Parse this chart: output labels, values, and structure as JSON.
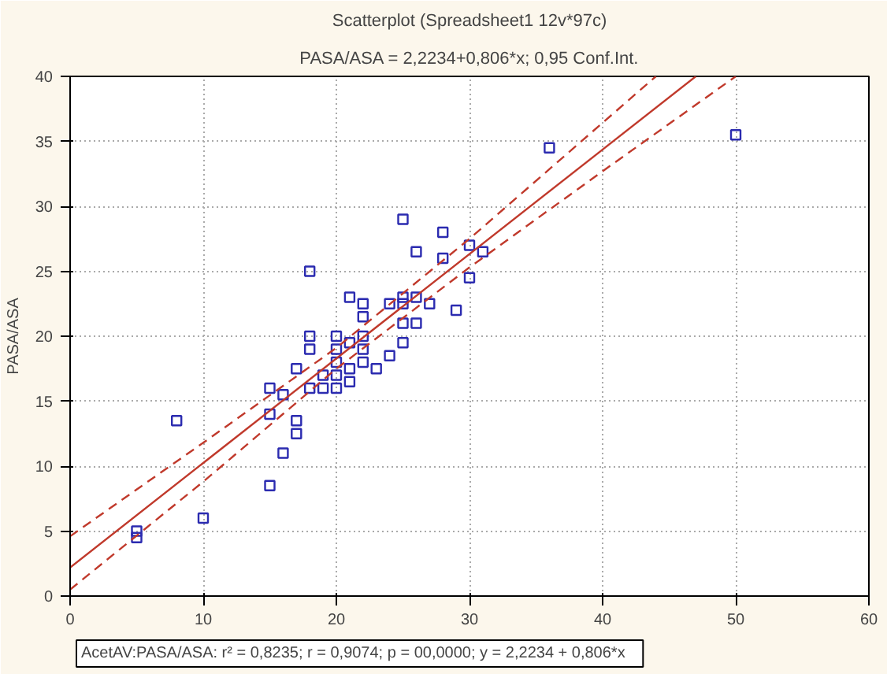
{
  "chart_data": {
    "type": "scatter",
    "title": "Scatterplot (Spreadsheet1 12v*97c)",
    "subtitle": "PASA/ASA = 2,2234+0,806*x; 0,95 Conf.Int.",
    "ylabel": "PASA/ASA",
    "annotations": [
      "AcetAV:PASA/ASA:  r² = 0,8235;  r = 0,9074; p = 00,0000;  y = 2,2234 + 0,806*x"
    ],
    "xlim": [
      0,
      60
    ],
    "ylim": [
      0,
      40
    ],
    "xticks": [
      0,
      10,
      20,
      30,
      40,
      50,
      60
    ],
    "yticks": [
      0,
      5,
      10,
      15,
      20,
      25,
      30,
      35,
      40
    ],
    "grid": true,
    "series": [
      {
        "marker": "square",
        "color": "#2b2bb0",
        "x": [
          5,
          5,
          8,
          10,
          15,
          15,
          15,
          16,
          16,
          17,
          17,
          17,
          18,
          18,
          18,
          18,
          19,
          19,
          20,
          20,
          20,
          20,
          20,
          21,
          21,
          21,
          21,
          22,
          22,
          22,
          22,
          22,
          23,
          24,
          24,
          25,
          25,
          25,
          25,
          25,
          26,
          26,
          26,
          27,
          28,
          28,
          29,
          30,
          30,
          31,
          36,
          50
        ],
        "values": [
          4.5,
          5,
          13.5,
          6,
          8.5,
          14,
          16,
          11,
          15.5,
          12.5,
          13.5,
          17.5,
          16,
          19,
          20,
          25,
          16,
          17,
          16,
          17,
          18,
          19,
          20,
          16.5,
          17.5,
          19.5,
          23,
          18,
          19,
          20,
          21.5,
          22.5,
          17.5,
          18.5,
          22.5,
          19.5,
          21,
          22.5,
          23,
          29,
          21,
          23,
          26.5,
          22.5,
          26,
          28,
          22,
          24.5,
          27,
          26.5,
          34.5,
          35.5
        ]
      },
      {
        "type": "line",
        "marker": "none",
        "line_style": "solid",
        "color": "#c0392b",
        "x": [
          0,
          47
        ],
        "values": [
          2.2,
          40
        ]
      },
      {
        "type": "line",
        "marker": "none",
        "line_style": "dashed",
        "color": "#c0392b",
        "x": [
          0,
          10,
          20,
          30,
          44
        ],
        "values": [
          4.6,
          11.8,
          19.1,
          27.5,
          40
        ]
      },
      {
        "type": "line",
        "marker": "none",
        "line_style": "dashed",
        "color": "#c0392b",
        "x": [
          0,
          10,
          20,
          30,
          40,
          50
        ],
        "values": [
          0.5,
          8.8,
          17.5,
          25.3,
          32.7,
          40
        ]
      }
    ]
  }
}
